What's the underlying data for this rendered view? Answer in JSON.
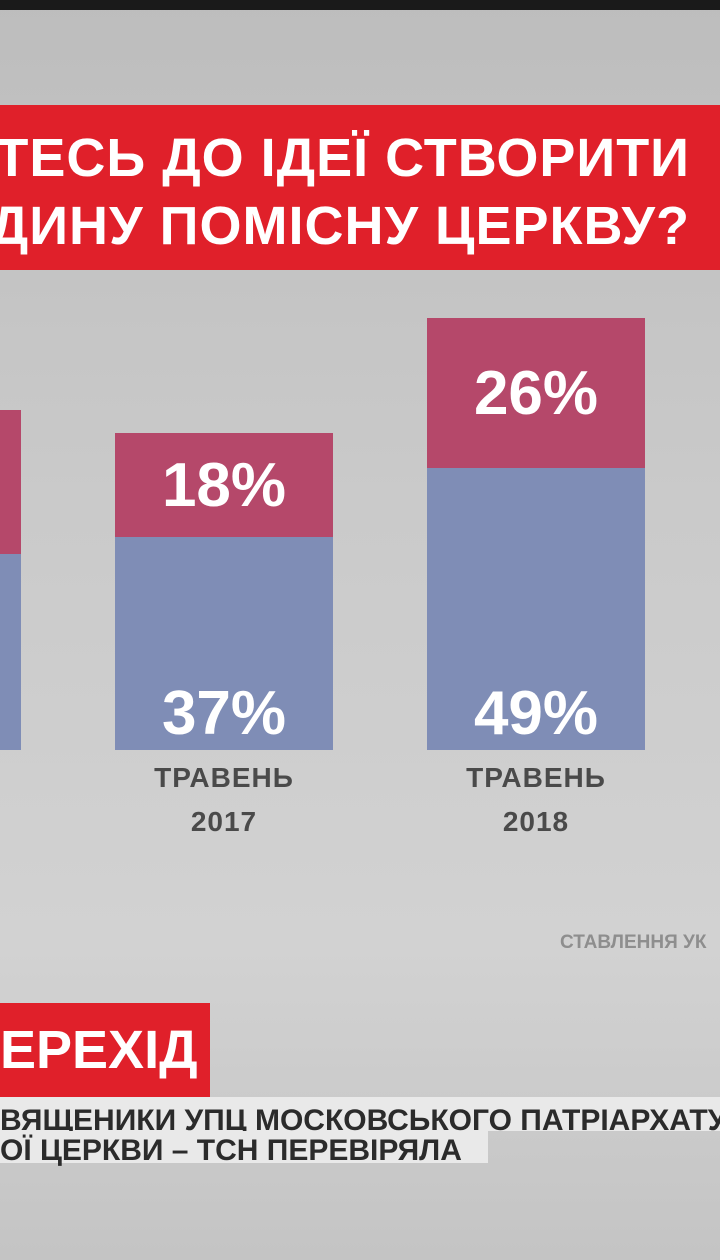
{
  "chart_data": {
    "type": "stacked-bar",
    "title": [
      "АВИТЕСЬ ДО ІДЕЇ СТВОРИТИ",
      "ЄДИНУ ПОМІСНУ ЦЕРКВУ?"
    ],
    "categories": [
      null,
      "ТРАВЕНЬ\n2017",
      "ТРАВЕНЬ\n2018"
    ],
    "series": [
      {
        "color": "#7f8db6",
        "values": [
          34,
          37,
          49
        ],
        "value_labels": [
          null,
          "37%",
          "49%"
        ]
      },
      {
        "color": "#b5486a",
        "values": [
          25,
          18,
          26
        ],
        "value_labels": [
          null,
          "18%",
          "26%"
        ]
      }
    ],
    "source": "СТАВЛЕННЯ УК"
  },
  "lower_third": {
    "tag": "ЕРЕХІД",
    "lines": [
      "ВЯЩЕНИКИ УПЦ МОСКОВСЬКОГО ПАТРІАРХАТУ І",
      "ОЇ ЦЕРКВИ – ТСН ПЕРЕВІРЯЛА"
    ]
  }
}
